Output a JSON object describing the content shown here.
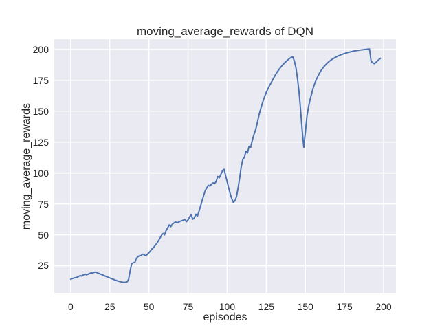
{
  "figure": {
    "title": "moving_average_rewards of DQN",
    "xlabel": "episodes",
    "ylabel": "moving_average_rewards"
  },
  "chart_data": {
    "type": "line",
    "title": "moving_average_rewards of DQN",
    "xlabel": "episodes",
    "ylabel": "moving_average_rewards",
    "xlim": [
      -10.5,
      207.9
    ],
    "ylim": [
      3.0,
      208.3
    ],
    "x_ticks": [
      0,
      25,
      50,
      75,
      100,
      125,
      150,
      175,
      200
    ],
    "y_ticks": [
      25,
      50,
      75,
      100,
      125,
      150,
      175,
      200
    ],
    "grid": true,
    "legend_position": "none",
    "style": {
      "plot_background": "#eaeaf2",
      "grid_color": "#ffffff",
      "line_color": "#4c72b0",
      "text_color": "#262626",
      "line_width": 2
    },
    "series": [
      {
        "name": "moving_average_rewards",
        "points": [
          [
            0,
            14.0
          ],
          [
            1,
            14.6
          ],
          [
            2,
            15.0
          ],
          [
            3,
            15.3
          ],
          [
            4,
            15.6
          ],
          [
            5,
            16.2
          ],
          [
            6,
            17.0
          ],
          [
            7,
            16.6
          ],
          [
            8,
            17.4
          ],
          [
            9,
            18.2
          ],
          [
            10,
            17.6
          ],
          [
            11,
            18.0
          ],
          [
            12,
            18.6
          ],
          [
            13,
            19.3
          ],
          [
            14,
            19.0
          ],
          [
            15,
            19.6
          ],
          [
            16,
            19.8
          ],
          [
            17,
            19.2
          ],
          [
            18,
            18.7
          ],
          [
            19,
            18.2
          ],
          [
            20,
            17.7
          ],
          [
            21,
            17.2
          ],
          [
            22,
            16.6
          ],
          [
            23,
            16.1
          ],
          [
            24,
            15.6
          ],
          [
            25,
            15.1
          ],
          [
            26,
            14.6
          ],
          [
            27,
            14.1
          ],
          [
            28,
            13.6
          ],
          [
            29,
            13.1
          ],
          [
            30,
            12.7
          ],
          [
            31,
            12.3
          ],
          [
            32,
            12.0
          ],
          [
            33,
            11.7
          ],
          [
            34,
            11.5
          ],
          [
            35,
            11.6
          ],
          [
            36,
            11.8
          ],
          [
            37,
            14.0
          ],
          [
            38,
            21.0
          ],
          [
            39,
            26.5
          ],
          [
            40,
            27.3
          ],
          [
            41,
            27.7
          ],
          [
            42,
            31.0
          ],
          [
            43,
            32.4
          ],
          [
            44,
            33.0
          ],
          [
            45,
            33.3
          ],
          [
            46,
            34.3
          ],
          [
            47,
            33.8
          ],
          [
            48,
            33.0
          ],
          [
            49,
            34.2
          ],
          [
            50,
            35.5
          ],
          [
            51,
            37.0
          ],
          [
            52,
            38.6
          ],
          [
            53,
            39.8
          ],
          [
            54,
            41.5
          ],
          [
            55,
            43.0
          ],
          [
            56,
            45.0
          ],
          [
            57,
            47.2
          ],
          [
            58,
            49.6
          ],
          [
            59,
            51.0
          ],
          [
            60,
            50.0
          ],
          [
            61,
            53.5
          ],
          [
            62,
            55.6
          ],
          [
            63,
            58.0
          ],
          [
            64,
            56.6
          ],
          [
            65,
            58.6
          ],
          [
            66,
            59.6
          ],
          [
            67,
            60.4
          ],
          [
            68,
            59.8
          ],
          [
            69,
            60.3
          ],
          [
            70,
            60.9
          ],
          [
            71,
            61.4
          ],
          [
            72,
            61.9
          ],
          [
            73,
            62.4
          ],
          [
            74,
            60.6
          ],
          [
            75,
            62.1
          ],
          [
            76,
            64.6
          ],
          [
            77,
            66.1
          ],
          [
            78,
            62.6
          ],
          [
            79,
            63.6
          ],
          [
            80,
            66.6
          ],
          [
            81,
            65.1
          ],
          [
            82,
            69.0
          ],
          [
            83,
            73.2
          ],
          [
            84,
            77.6
          ],
          [
            85,
            81.8
          ],
          [
            86,
            85.8
          ],
          [
            87,
            88.0
          ],
          [
            88,
            90.0
          ],
          [
            89,
            89.4
          ],
          [
            90,
            91.0
          ],
          [
            91,
            92.0
          ],
          [
            92,
            91.4
          ],
          [
            93,
            93.2
          ],
          [
            94,
            97.2
          ],
          [
            95,
            96.2
          ],
          [
            96,
            99.0
          ],
          [
            97,
            101.8
          ],
          [
            98,
            103.0
          ],
          [
            99,
            98.0
          ],
          [
            100,
            93.0
          ],
          [
            101,
            87.8
          ],
          [
            102,
            83.0
          ],
          [
            103,
            79.0
          ],
          [
            104,
            76.2
          ],
          [
            105,
            77.6
          ],
          [
            106,
            81.0
          ],
          [
            107,
            88.0
          ],
          [
            108,
            96.0
          ],
          [
            109,
            105.0
          ],
          [
            110,
            111.0
          ],
          [
            111,
            112.6
          ],
          [
            112,
            117.6
          ],
          [
            113,
            116.2
          ],
          [
            114,
            121.6
          ],
          [
            115,
            120.6
          ],
          [
            116,
            126.0
          ],
          [
            117,
            130.6
          ],
          [
            118,
            134.2
          ],
          [
            119,
            139.0
          ],
          [
            120,
            145.0
          ],
          [
            121,
            150.0
          ],
          [
            122,
            154.4
          ],
          [
            123,
            158.4
          ],
          [
            124,
            162.0
          ],
          [
            125,
            165.2
          ],
          [
            126,
            168.0
          ],
          [
            127,
            170.6
          ],
          [
            128,
            172.8
          ],
          [
            129,
            175.2
          ],
          [
            130,
            177.5
          ],
          [
            131,
            179.8
          ],
          [
            132,
            181.8
          ],
          [
            133,
            183.6
          ],
          [
            134,
            185.3
          ],
          [
            135,
            186.8
          ],
          [
            136,
            188.2
          ],
          [
            137,
            189.5
          ],
          [
            138,
            190.7
          ],
          [
            139,
            191.8
          ],
          [
            140,
            192.8
          ],
          [
            141,
            193.7
          ],
          [
            142,
            193.9
          ],
          [
            143,
            190.5
          ],
          [
            144,
            185.0
          ],
          [
            145,
            176.0
          ],
          [
            146,
            165.0
          ],
          [
            147,
            150.0
          ],
          [
            148,
            134.0
          ],
          [
            149,
            120.6
          ],
          [
            150,
            133.0
          ],
          [
            151,
            146.0
          ],
          [
            152,
            153.5
          ],
          [
            153,
            159.4
          ],
          [
            154,
            164.2
          ],
          [
            155,
            168.9
          ],
          [
            156,
            172.6
          ],
          [
            157,
            175.7
          ],
          [
            158,
            178.4
          ],
          [
            159,
            180.8
          ],
          [
            160,
            182.9
          ],
          [
            161,
            184.7
          ],
          [
            162,
            186.3
          ],
          [
            163,
            187.7
          ],
          [
            164,
            189.0
          ],
          [
            165,
            190.1
          ],
          [
            166,
            191.1
          ],
          [
            167,
            192.0
          ],
          [
            168,
            192.8
          ],
          [
            169,
            193.5
          ],
          [
            170,
            194.2
          ],
          [
            171,
            194.8
          ],
          [
            172,
            195.3
          ],
          [
            173,
            195.8
          ],
          [
            174,
            196.3
          ],
          [
            175,
            196.7
          ],
          [
            176,
            197.1
          ],
          [
            177,
            197.5
          ],
          [
            178,
            197.8
          ],
          [
            179,
            198.1
          ],
          [
            180,
            198.4
          ],
          [
            181,
            198.7
          ],
          [
            182,
            198.9
          ],
          [
            183,
            199.1
          ],
          [
            184,
            199.3
          ],
          [
            185,
            199.5
          ],
          [
            186,
            199.7
          ],
          [
            187,
            199.8
          ],
          [
            188,
            200.0
          ],
          [
            189,
            200.1
          ],
          [
            190,
            200.3
          ],
          [
            191,
            200.4
          ],
          [
            192,
            190.5
          ],
          [
            193,
            189.3
          ],
          [
            194,
            188.5
          ],
          [
            195,
            189.4
          ],
          [
            196,
            190.7
          ],
          [
            197,
            191.9
          ],
          [
            198,
            192.8
          ]
        ]
      }
    ]
  }
}
